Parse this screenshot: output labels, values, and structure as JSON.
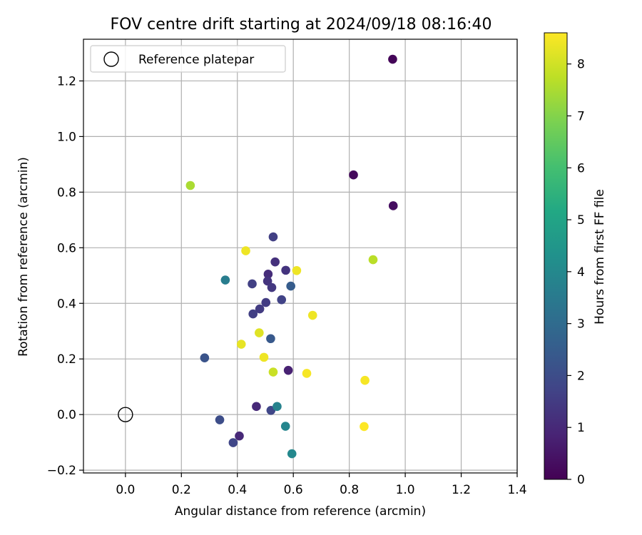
{
  "chart_data": {
    "type": "scatter",
    "title": "FOV centre drift starting at 2024/09/18 08:16:40",
    "xlabel": "Angular distance from reference (arcmin)",
    "ylabel": "Rotation from reference (arcmin)",
    "xlim": [
      -0.15,
      1.4
    ],
    "ylim": [
      -0.21,
      1.35
    ],
    "xticks": [
      0.0,
      0.2,
      0.4,
      0.6,
      0.8,
      1.0,
      1.2,
      1.4
    ],
    "xtick_labels": [
      "0.0",
      "0.2",
      "0.4",
      "0.6",
      "0.8",
      "1.0",
      "1.2",
      "1.4"
    ],
    "yticks": [
      -0.2,
      0.0,
      0.2,
      0.4,
      0.6,
      0.8,
      1.0,
      1.2
    ],
    "ytick_labels": [
      "−0.2",
      "0.0",
      "0.2",
      "0.4",
      "0.6",
      "0.8",
      "1.0",
      "1.2"
    ],
    "grid": true,
    "legend": {
      "position": "top-left",
      "entries": [
        "Reference platepar"
      ]
    },
    "reference_point": {
      "x": 0.0,
      "y": 0.0,
      "label": "Reference platepar"
    },
    "colorbar": {
      "label": "Hours from first FF file",
      "colormap": "viridis",
      "range": [
        0,
        8.6
      ],
      "ticks": [
        0,
        1,
        2,
        3,
        4,
        5,
        6,
        7,
        8
      ],
      "tick_labels": [
        "0",
        "1",
        "2",
        "3",
        "4",
        "5",
        "6",
        "7",
        "8"
      ]
    },
    "points": [
      {
        "x": 0.955,
        "y": 1.278,
        "hours": 0.1
      },
      {
        "x": 0.815,
        "y": 0.862,
        "hours": 0.2
      },
      {
        "x": 0.957,
        "y": 0.751,
        "hours": 0.3
      },
      {
        "x": 0.582,
        "y": 0.159,
        "hours": 0.8
      },
      {
        "x": 0.468,
        "y": 0.029,
        "hours": 1.0
      },
      {
        "x": 0.407,
        "y": -0.077,
        "hours": 1.0
      },
      {
        "x": 0.51,
        "y": 0.505,
        "hours": 1.1
      },
      {
        "x": 0.535,
        "y": 0.549,
        "hours": 1.2
      },
      {
        "x": 0.573,
        "y": 0.519,
        "hours": 1.3
      },
      {
        "x": 0.508,
        "y": 0.48,
        "hours": 1.3
      },
      {
        "x": 0.523,
        "y": 0.457,
        "hours": 1.4
      },
      {
        "x": 0.528,
        "y": 0.639,
        "hours": 1.6
      },
      {
        "x": 0.453,
        "y": 0.47,
        "hours": 1.6
      },
      {
        "x": 0.502,
        "y": 0.403,
        "hours": 1.5
      },
      {
        "x": 0.48,
        "y": 0.38,
        "hours": 1.5
      },
      {
        "x": 0.456,
        "y": 0.362,
        "hours": 1.6
      },
      {
        "x": 0.558,
        "y": 0.413,
        "hours": 1.7
      },
      {
        "x": 0.52,
        "y": 0.015,
        "hours": 1.8
      },
      {
        "x": 0.385,
        "y": -0.101,
        "hours": 1.8
      },
      {
        "x": 0.337,
        "y": -0.019,
        "hours": 2.0
      },
      {
        "x": 0.283,
        "y": 0.204,
        "hours": 2.2
      },
      {
        "x": 0.519,
        "y": 0.273,
        "hours": 2.4
      },
      {
        "x": 0.591,
        "y": 0.462,
        "hours": 2.5
      },
      {
        "x": 0.357,
        "y": 0.484,
        "hours": 3.6
      },
      {
        "x": 0.542,
        "y": 0.029,
        "hours": 3.8
      },
      {
        "x": 0.572,
        "y": -0.042,
        "hours": 3.9
      },
      {
        "x": 0.595,
        "y": -0.141,
        "hours": 4.0
      },
      {
        "x": 0.232,
        "y": 0.824,
        "hours": 7.5
      },
      {
        "x": 0.885,
        "y": 0.557,
        "hours": 7.7
      },
      {
        "x": 0.528,
        "y": 0.153,
        "hours": 7.9
      },
      {
        "x": 0.478,
        "y": 0.294,
        "hours": 8.2
      },
      {
        "x": 0.414,
        "y": 0.253,
        "hours": 8.3
      },
      {
        "x": 0.495,
        "y": 0.206,
        "hours": 8.4
      },
      {
        "x": 0.43,
        "y": 0.589,
        "hours": 8.4
      },
      {
        "x": 0.612,
        "y": 0.518,
        "hours": 8.4
      },
      {
        "x": 0.669,
        "y": 0.357,
        "hours": 8.4
      },
      {
        "x": 0.648,
        "y": 0.148,
        "hours": 8.5
      },
      {
        "x": 0.856,
        "y": 0.123,
        "hours": 8.5
      },
      {
        "x": 0.853,
        "y": -0.043,
        "hours": 8.6
      }
    ]
  }
}
